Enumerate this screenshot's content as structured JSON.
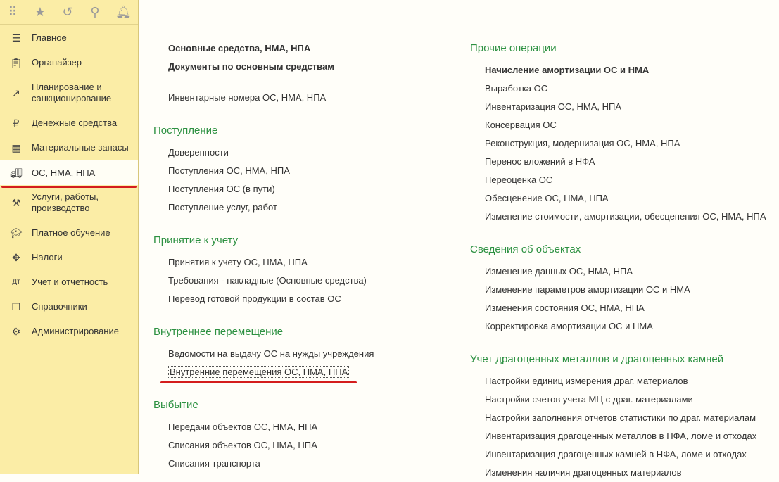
{
  "topbar": {
    "icons": [
      "apps-grid-icon",
      "star-icon",
      "history-icon",
      "search-icon",
      "bell-icon"
    ]
  },
  "sidebar": {
    "items": [
      {
        "label": "Главное",
        "icon": "menu-icon"
      },
      {
        "label": "Органайзер",
        "icon": "clipboard-icon"
      },
      {
        "label": "Планирование и санкционирование",
        "icon": "planning-chart-icon"
      },
      {
        "label": "Денежные средства",
        "icon": "ruble-icon"
      },
      {
        "label": "Материальные запасы",
        "icon": "grid-icon"
      },
      {
        "label": "ОС, НМА, НПА",
        "icon": "truck-icon",
        "selected": true
      },
      {
        "label": "Услуги, работы, производство",
        "icon": "tools-icon"
      },
      {
        "label": "Платное обучение",
        "icon": "graduation-cap-icon"
      },
      {
        "label": "Налоги",
        "icon": "eagle-emblem-icon"
      },
      {
        "label": "Учет и отчетность",
        "icon": "debit-credit-icon"
      },
      {
        "label": "Справочники",
        "icon": "books-icon"
      },
      {
        "label": "Администрирование",
        "icon": "gear-icon"
      }
    ]
  },
  "left": {
    "top_bold": [
      "Основные средства, НМА, НПА",
      "Документы по основным средствам"
    ],
    "top_link": "Инвентарные номера ОС, НМА, НПА",
    "sections": [
      {
        "title": "Поступление",
        "items": [
          "Доверенности",
          "Поступления ОС, НМА, НПА",
          "Поступления ОС (в пути)",
          "Поступление услуг, работ"
        ]
      },
      {
        "title": "Принятие к учету",
        "items": [
          "Принятия к учету ОС, НМА, НПА",
          "Требования - накладные (Основные средства)",
          "Перевод готовой продукции в состав ОС"
        ]
      },
      {
        "title": "Внутреннее перемещение",
        "items": [
          "Ведомости на выдачу ОС на нужды учреждения",
          "Внутренние перемещения ОС, НМА, НПА"
        ]
      },
      {
        "title": "Выбытие",
        "items": [
          "Передачи объектов ОС, НМА, НПА",
          "Списания объектов ОС, НМА, НПА",
          "Списания транспорта"
        ]
      }
    ]
  },
  "right": {
    "sections": [
      {
        "title": "Прочие операции",
        "bold": "Начисление амортизации ОС и НМА",
        "items": [
          "Выработка ОС",
          "Инвентаризация ОС, НМА, НПА",
          "Консервация ОС",
          "Реконструкция, модернизация ОС, НМА, НПА",
          "Перенос вложений в НФА",
          "Переоценка ОС",
          "Обесценение ОС, НМА, НПА",
          "Изменение стоимости, амортизации, обесценения ОС, НМА, НПА"
        ]
      },
      {
        "title": "Сведения об объектах",
        "items": [
          "Изменение данных ОС, НМА, НПА",
          "Изменение параметров амортизации ОС и НМА",
          "Изменения состояния ОС, НМА, НПА",
          "Корректировка амортизации ОС и НМА"
        ]
      },
      {
        "title": "Учет драгоценных металлов и драгоценных камней",
        "items": [
          "Настройки единиц измерения драг. материалов",
          "Настройки счетов учета МЦ с драг. материалами",
          "Настройки заполнения отчетов статистики по драг. материалам",
          "Инвентаризация драгоценных металлов в НФА, ломе и отходах",
          "Инвентаризация драгоценных камней в НФА, ломе и отходах",
          "Изменения наличия драгоценных материалов"
        ]
      }
    ]
  }
}
